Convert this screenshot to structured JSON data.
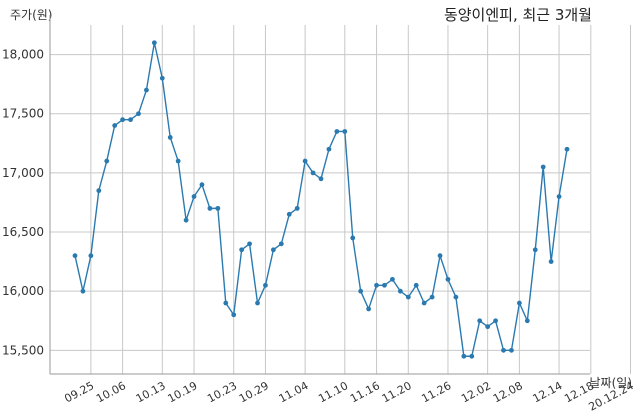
{
  "chart_data": {
    "type": "line",
    "title": "동양이엔피, 최근 3개월",
    "ylabel": "주가(원)",
    "xlabel": "날짜(일)",
    "ylim": [
      15300,
      18250
    ],
    "yticks": [
      15500,
      16000,
      16500,
      17000,
      17500,
      18000
    ],
    "ytick_labels": [
      "15,500",
      "16,000",
      "16,500",
      "17,000",
      "17,500",
      "18,000"
    ],
    "xtick_labels": [
      "09.25",
      "10.06",
      "10.13",
      "10.19",
      "10.23",
      "10.29",
      "11.04",
      "11.10",
      "11.16",
      "11.20",
      "11.26",
      "12.02",
      "12.08",
      "12.14",
      "12.18",
      "20.12.24"
    ],
    "xtick_positions": [
      2,
      6,
      11,
      15,
      20,
      24,
      29,
      34,
      38,
      42,
      47,
      52,
      56,
      61,
      65,
      70
    ],
    "grid": true,
    "color": "#2a7ab0",
    "series": [
      {
        "name": "",
        "values": [
          16300,
          16000,
          16300,
          16850,
          17100,
          17400,
          17450,
          17450,
          17500,
          17700,
          18100,
          17800,
          17300,
          17100,
          16600,
          16800,
          16900,
          16700,
          16700,
          15900,
          15800,
          16350,
          16400,
          15900,
          16050,
          16350,
          16400,
          16650,
          16700,
          17100,
          17000,
          16950,
          17200,
          17350,
          17350,
          16450,
          16000,
          15850,
          16050,
          16050,
          16100,
          16000,
          15950,
          16050,
          15900,
          15950,
          16300,
          16100,
          15950,
          15450,
          15450,
          15750,
          15700,
          15750,
          15500,
          15500,
          15900,
          15750,
          16350,
          17050,
          16250,
          16800,
          17200
        ]
      }
    ]
  }
}
